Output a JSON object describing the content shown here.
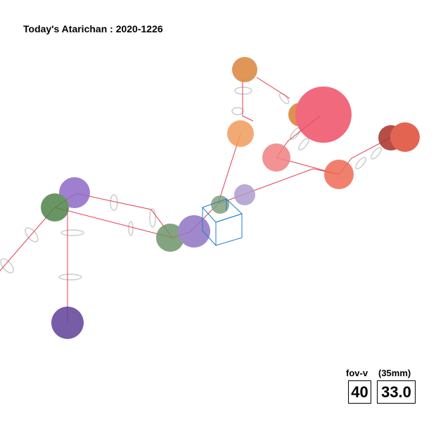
{
  "header": {
    "title": "Today's Atarichan : 2020-1226"
  },
  "camera": {
    "fov_label": "fov-v",
    "lens_label": "(35mm)",
    "fov_value": "40",
    "lens_value": "33.0"
  }
}
